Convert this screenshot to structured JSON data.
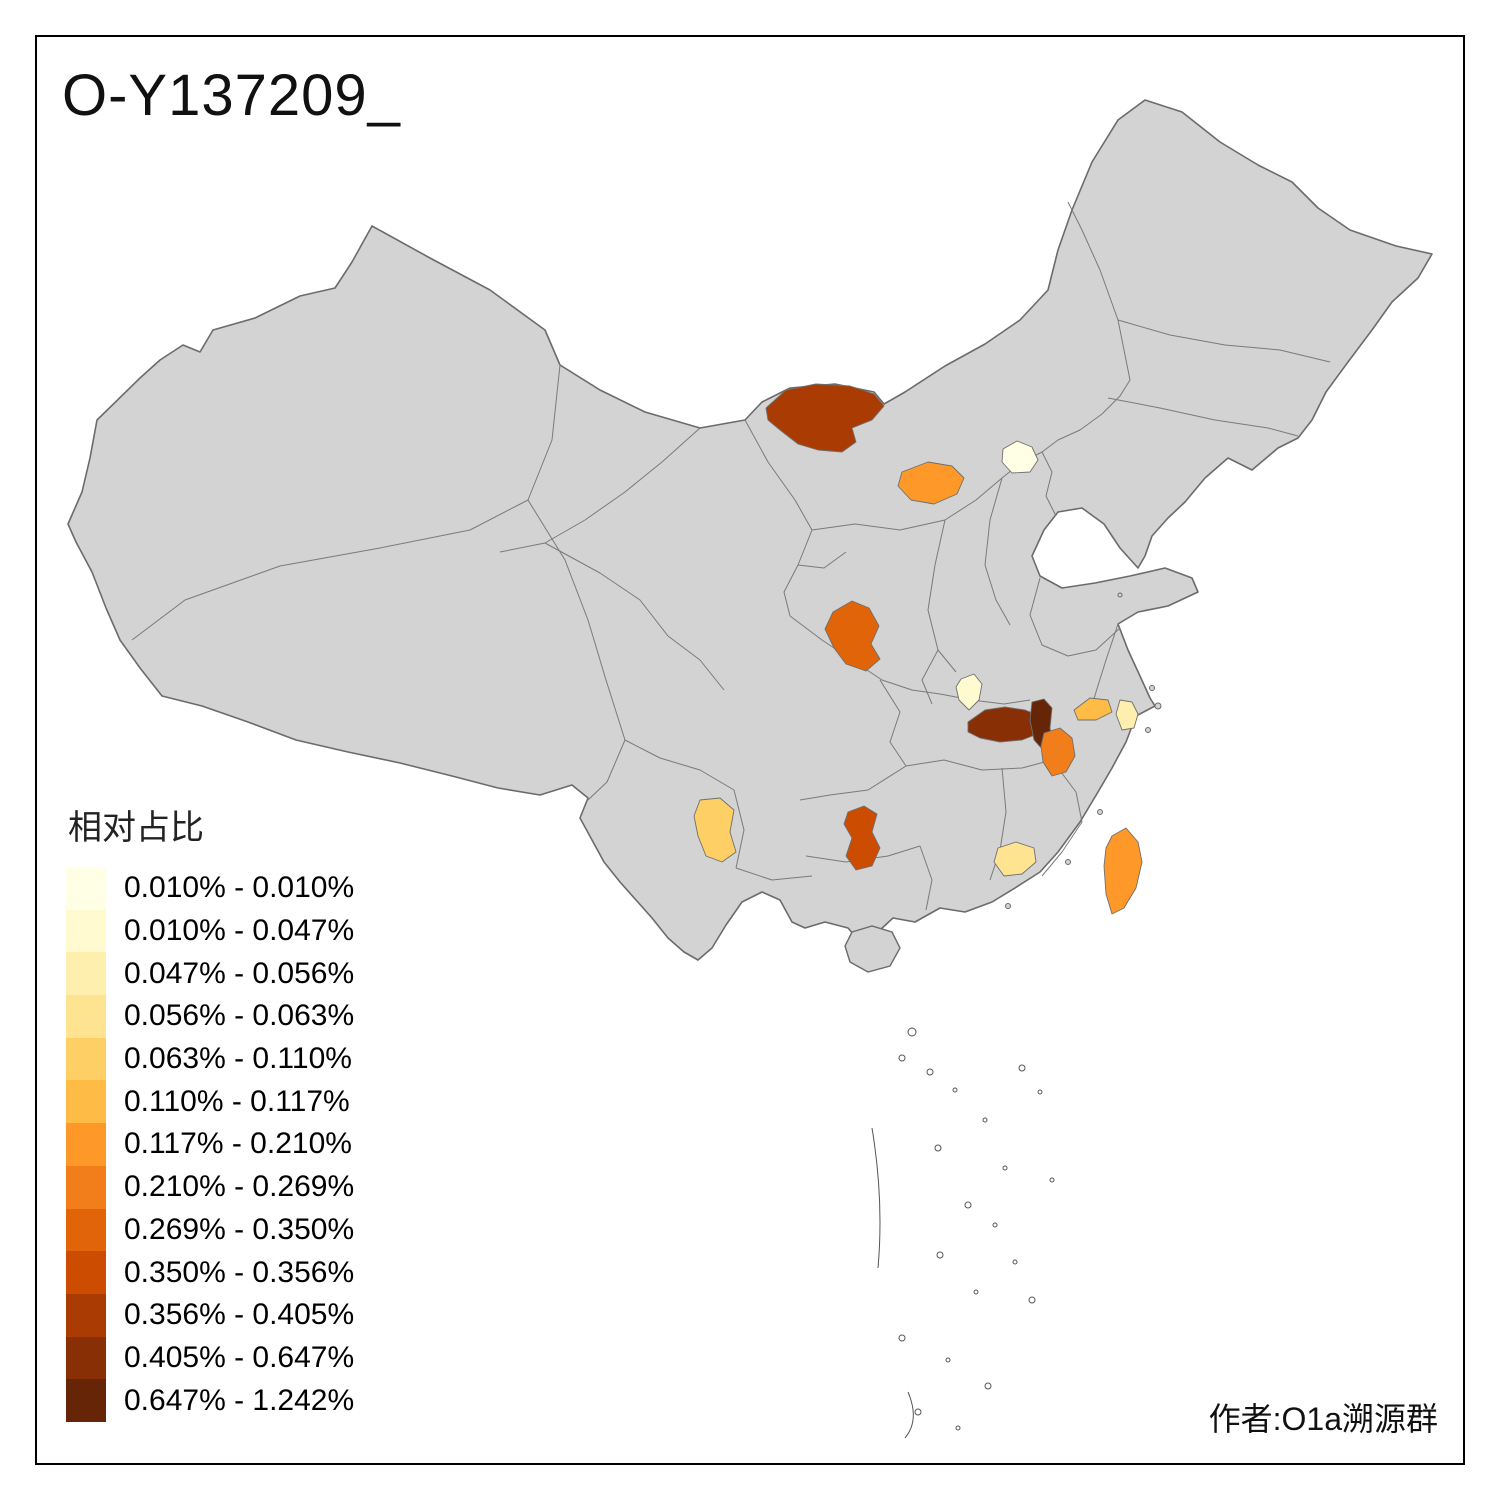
{
  "title": "O-Y137209_",
  "attribution": "作者:O1a溯源群",
  "legend": {
    "title": "相对占比",
    "entries": [
      {
        "label": "0.010% - 0.010%",
        "color": "#ffffe5"
      },
      {
        "label": "0.010% - 0.047%",
        "color": "#fffacf"
      },
      {
        "label": "0.047% - 0.056%",
        "color": "#ffefae"
      },
      {
        "label": "0.056% - 0.063%",
        "color": "#fee391"
      },
      {
        "label": "0.063% - 0.110%",
        "color": "#fecf65"
      },
      {
        "label": "0.110% - 0.117%",
        "color": "#febb45"
      },
      {
        "label": "0.117% - 0.210%",
        "color": "#fe9929"
      },
      {
        "label": "0.210% - 0.269%",
        "color": "#f27d1b"
      },
      {
        "label": "0.269% - 0.350%",
        "color": "#e16408"
      },
      {
        "label": "0.350% - 0.356%",
        "color": "#cc4c02"
      },
      {
        "label": "0.356% - 0.405%",
        "color": "#aa3c03"
      },
      {
        "label": "0.405% - 0.647%",
        "color": "#882f05"
      },
      {
        "label": "0.647% - 1.242%",
        "color": "#662506"
      }
    ]
  },
  "map": {
    "land_color": "#d3d3d3",
    "outline_color": "#6b6b6b",
    "boundary_color": "#7a7a7a",
    "region_colors": {
      "inner_mongolia_north": "#aa3c03",
      "beijing": "#ffffe5",
      "ordos": "#fe9929",
      "shaanxi_north": "#e16408",
      "hubei_northwest": "#fffacf",
      "hubei_dark_band": "#882f05",
      "hubei_east_darkest": "#662506",
      "jiangxi_north": "#f27d1b",
      "jiangsu_south": "#febb45",
      "shanghai_coastal": "#ffefae",
      "yunnan_central": "#fecf65",
      "guizhou": "#cc4c02",
      "guangdong_east": "#fee391",
      "taiwan": "#fe9929"
    }
  }
}
